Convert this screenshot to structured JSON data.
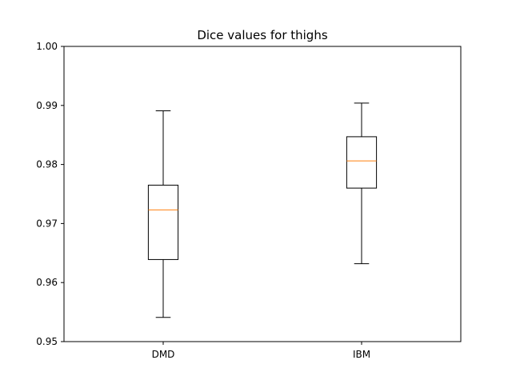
{
  "chart_data": {
    "type": "box",
    "title": "Dice values for thighs",
    "xlabel": "",
    "ylabel": "",
    "ylim": [
      0.95,
      1.0
    ],
    "yticks": [
      0.95,
      0.96,
      0.97,
      0.98,
      0.99,
      1.0
    ],
    "ytick_labels": [
      "0.95",
      "0.96",
      "0.97",
      "0.98",
      "0.99",
      "1.00"
    ],
    "categories": [
      "DMD",
      "IBM"
    ],
    "boxes": [
      {
        "label": "DMD",
        "whisker_low": 0.9541,
        "q1": 0.9639,
        "median": 0.9723,
        "q3": 0.9765,
        "whisker_high": 0.9891
      },
      {
        "label": "IBM",
        "whisker_low": 0.9632,
        "q1": 0.976,
        "median": 0.9806,
        "q3": 0.9847,
        "whisker_high": 0.9904
      }
    ],
    "median_color": "#ff7f0e",
    "box_color": "#000000",
    "grid": false
  }
}
